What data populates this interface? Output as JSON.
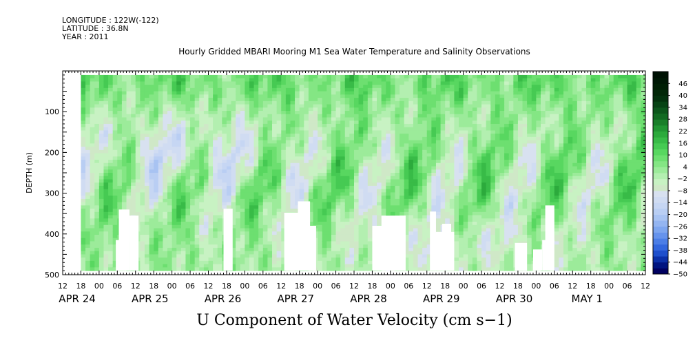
{
  "header": {
    "longitude": "LONGITUDE : 122W(-122)",
    "latitude": "LATITUDE : 36.8N",
    "year": "YEAR : 2011"
  },
  "chart_data": {
    "type": "heatmap",
    "title": "Hourly Gridded MBARI Mooring M1 Sea Water Temperature and Salinity Observations",
    "variable_title": "U Component of Water Velocity (cm s−1)",
    "ylabel": "DEPTH (m)",
    "ylim": [
      500,
      0
    ],
    "y_ticks": [
      100,
      200,
      300,
      400,
      500
    ],
    "x_hour_labels": [
      "12",
      "18",
      "00",
      "06",
      "12",
      "18",
      "00",
      "06",
      "12",
      "18",
      "00",
      "06",
      "12",
      "18",
      "00",
      "06",
      "12",
      "18",
      "00",
      "06",
      "12",
      "18",
      "00",
      "06",
      "12",
      "18",
      "00",
      "06",
      "12",
      "18",
      "00",
      "06",
      "12"
    ],
    "x_day_labels": [
      "APR 24",
      "APR 25",
      "APR 26",
      "APR 27",
      "APR 28",
      "APR 29",
      "APR 30",
      "MAY  1"
    ],
    "x_range_hours": [
      0,
      192
    ],
    "data_start_hour": 6,
    "depth_data_range": [
      10,
      490
    ],
    "colorbar": {
      "labels": [
        "46",
        "40",
        "34",
        "28",
        "22",
        "16",
        "10",
        "4",
        "−2",
        "−8",
        "−14",
        "−20",
        "−26",
        "−32",
        "−38",
        "−44",
        "−50"
      ],
      "min": -50,
      "max": 52,
      "step": 3,
      "colors": [
        "#000060",
        "#001480",
        "#0b30a8",
        "#1e4fcc",
        "#3367dd",
        "#4c7ee6",
        "#6693ec",
        "#7ea6ef",
        "#94b5f1",
        "#a8c3f2",
        "#b9cef3",
        "#c6d6f3",
        "#d0dcf2",
        "#d8e1f0",
        "#cfe8c7",
        "#c8f2c3",
        "#b3efb0",
        "#9ceb9a",
        "#84e684",
        "#6ddf70",
        "#58d760",
        "#46ca53",
        "#38bb47",
        "#2caa3c",
        "#229633",
        "#1a7f2a",
        "#126a22",
        "#0c561b",
        "#074314",
        "#03310d",
        "#022708",
        "#011f05",
        "#001805",
        "#001204"
      ]
    }
  }
}
